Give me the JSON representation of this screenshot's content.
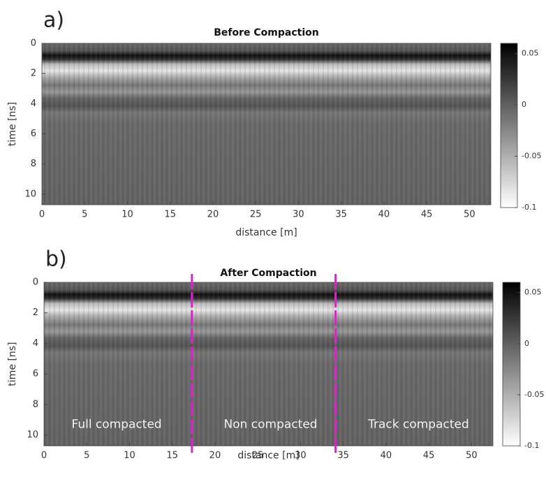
{
  "chart_data": [
    {
      "type": "radargram",
      "panel_label": "a)",
      "title": "Before Compaction",
      "xlabel": "distance [m]",
      "ylabel": "time [ns]",
      "xlim": [
        0,
        52.5
      ],
      "ylim": [
        0,
        10.7
      ],
      "xticks": [
        0,
        5,
        10,
        15,
        20,
        25,
        30,
        35,
        40,
        45,
        50
      ],
      "yticks": [
        0,
        2,
        4,
        6,
        8,
        10
      ],
      "colorbar": {
        "clim": [
          -0.1,
          0.06
        ],
        "ticks": [
          0.05,
          0,
          -0.05,
          -0.1
        ]
      }
    },
    {
      "type": "radargram",
      "panel_label": "b)",
      "title": "After Compaction",
      "xlabel": "distance [m]",
      "ylabel": "time [ns]",
      "xlim": [
        0,
        52.5
      ],
      "ylim": [
        0,
        10.7
      ],
      "xticks": [
        0,
        5,
        10,
        15,
        20,
        25,
        30,
        35,
        40,
        45,
        50
      ],
      "yticks": [
        0,
        2,
        4,
        6,
        8,
        10
      ],
      "colorbar": {
        "clim": [
          -0.1,
          0.06
        ],
        "ticks": [
          0.05,
          0,
          -0.05,
          -0.1
        ]
      },
      "vlines": [
        17.3,
        34.1
      ],
      "vline_color": "#e020d0",
      "annotations": [
        {
          "text": "Full compacted",
          "x": 8.5,
          "y": 9.3
        },
        {
          "text": "Non compacted",
          "x": 26.5,
          "y": 9.3
        },
        {
          "text": "Track compacted",
          "x": 43.8,
          "y": 9.3
        }
      ]
    }
  ]
}
